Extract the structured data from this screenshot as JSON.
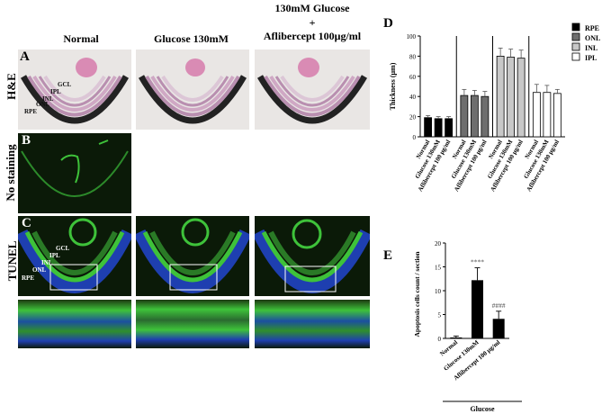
{
  "columns": [
    "Normal",
    "Glucose 130mM",
    "130mM Glucose",
    "+",
    "Aflibercept 100μg/ml"
  ],
  "rows": [
    "H&E",
    "No staining",
    "TUNEL"
  ],
  "panel_letters": {
    "a": "A",
    "b": "B",
    "c": "C",
    "d": "D",
    "e": "E"
  },
  "layers": {
    "gcl": "GCL",
    "ipl": "IPL",
    "inl": "INL",
    "onl": "ONL",
    "rpe": "RPE"
  },
  "colors": {
    "rpe": "#000000",
    "onl": "#6e6e6e",
    "inl": "#c8c8c8",
    "ipl": "#ffffff",
    "fluor_green": "#3ec23a",
    "fluor_blue": "#1e3fb0",
    "he_pink": "#d98bb4"
  },
  "chart_data": [
    {
      "id": "D",
      "type": "bar",
      "ylabel": "Thickness (μm)",
      "ylim": [
        0,
        100
      ],
      "yticks": [
        0,
        20,
        40,
        60,
        80,
        100
      ],
      "categories": [
        "Normal",
        "Glucose 130mM",
        "Aflibercept 100 μg/ml"
      ],
      "series": [
        {
          "name": "RPE",
          "values": [
            19,
            18,
            18
          ],
          "errors": [
            2,
            2,
            2
          ]
        },
        {
          "name": "ONL",
          "values": [
            41,
            41,
            40
          ],
          "errors": [
            6,
            5,
            5
          ]
        },
        {
          "name": "INL",
          "values": [
            80,
            79,
            78
          ],
          "errors": [
            8,
            8,
            8
          ]
        },
        {
          "name": "IPL",
          "values": [
            44,
            44,
            43
          ],
          "errors": [
            8,
            7,
            4
          ]
        }
      ],
      "legend": "right"
    },
    {
      "id": "E",
      "type": "bar",
      "ylabel": "Apoptosis cells count / section",
      "ylim": [
        0,
        20
      ],
      "yticks": [
        0,
        5,
        10,
        15,
        20
      ],
      "categories": [
        "Normal",
        "Glucose 130mM",
        "Aflibercept 100 μg/ml"
      ],
      "values": [
        0.2,
        12.2,
        4.1
      ],
      "errors": [
        0.3,
        2.6,
        1.6
      ],
      "annotations": [
        "",
        "****",
        "####"
      ],
      "group_label": "Glucose"
    }
  ]
}
